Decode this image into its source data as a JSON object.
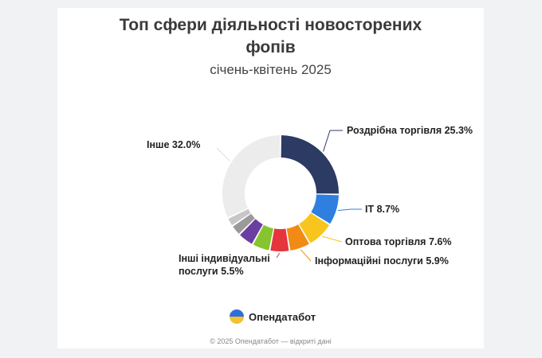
{
  "chart_data": {
    "type": "pie",
    "title_line1": "Топ сфери діяльності новосторених",
    "title_line2": "фопів",
    "subtitle": "січень-квітень 2025",
    "slices": [
      {
        "label": "Роздрібна торгівля",
        "value": 25.3,
        "text": "Роздрібна торгівля 25.3%",
        "color": "#2b3b63"
      },
      {
        "label": "IT",
        "value": 8.7,
        "text": "IT 8.7%",
        "color": "#2e7fe0"
      },
      {
        "label": "Оптова торгівля",
        "value": 7.6,
        "text": "Оптова торгівля 7.6%",
        "color": "#f7c51d"
      },
      {
        "label": "Інформаційні послуги",
        "value": 5.9,
        "text": "Інформаційні послуги 5.9%",
        "color": "#f28a16"
      },
      {
        "label": "Інші індивідуальні послуги",
        "value": 5.5,
        "text_line1": "Інші індивідуальні",
        "text_line2": "послуги 5.5%",
        "color": "#e5343c"
      },
      {
        "label": "",
        "value": 5.0,
        "color": "#86c52f"
      },
      {
        "label": "",
        "value": 4.5,
        "color": "#6a3fa0"
      },
      {
        "label": "",
        "value": 3.0,
        "color": "#9a9a9a"
      },
      {
        "label": "",
        "value": 2.5,
        "color": "#c7c7c7"
      },
      {
        "label": "Інше",
        "value": 32.0,
        "text": "Інше 32.0%",
        "color": "#ececec"
      }
    ]
  },
  "brand": {
    "name": "Опендатабот"
  },
  "footer": "© 2025 Опендатабот — відкриті дані"
}
